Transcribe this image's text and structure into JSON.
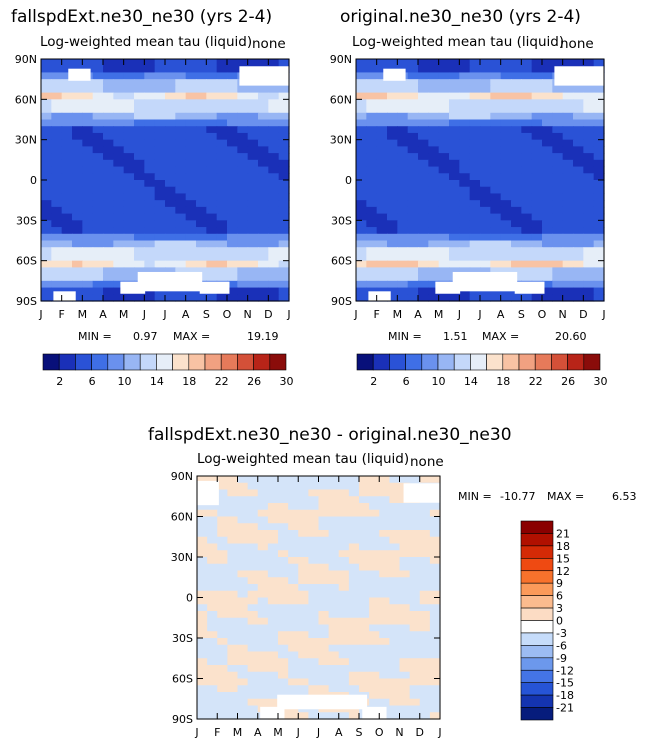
{
  "figure": {
    "title_left": "fallspdExt.ne30_ne30 (yrs 2-4)",
    "title_right": "original.ne30_ne30 (yrs 2-4)",
    "title_diff": "fallspdExt.ne30_ne30 - original.ne30_ne30"
  },
  "chart_data": [
    {
      "type": "heatmap",
      "title": "Log-weighted mean tau (liquid)",
      "corner_label": "none",
      "xlabel": "",
      "ylabel": "",
      "x_ticks": [
        "J",
        "F",
        "M",
        "A",
        "M",
        "J",
        "J",
        "A",
        "S",
        "O",
        "N",
        "D",
        "J"
      ],
      "y_ticks": [
        "90N",
        "60N",
        "30N",
        "0",
        "30S",
        "60S",
        "90S"
      ],
      "min_label": "MIN =",
      "min": "0.97",
      "max_label": "MAX =",
      "max": "19.19",
      "colorbar_labels": [
        "2",
        "6",
        "10",
        "14",
        "18",
        "22",
        "26",
        "30"
      ],
      "colorbar_colors": [
        "#08107a",
        "#1a30b8",
        "#2a52d6",
        "#3f6fe6",
        "#6a91ee",
        "#98b6f4",
        "#c4d8fa",
        "#e6eef8",
        "#fbe2cc",
        "#f8c3a4",
        "#f1a181",
        "#e67a5a",
        "#d45038",
        "#b82418",
        "#8a0c0a"
      ],
      "description_zones": "tau by month and latitude"
    },
    {
      "type": "heatmap",
      "title": "Log-weighted mean tau (liquid)",
      "corner_label": "none",
      "x_ticks": [
        "J",
        "F",
        "M",
        "A",
        "M",
        "J",
        "J",
        "A",
        "S",
        "O",
        "N",
        "D",
        "J"
      ],
      "y_ticks": [
        "90N",
        "60N",
        "30N",
        "0",
        "30S",
        "60S",
        "90S"
      ],
      "min_label": "MIN =",
      "min": "1.51",
      "max_label": "MAX =",
      "max": "20.60",
      "colorbar_labels": [
        "2",
        "6",
        "10",
        "14",
        "18",
        "22",
        "26",
        "30"
      ]
    },
    {
      "type": "heatmap",
      "title": "Log-weighted mean tau (liquid)",
      "corner_label": "none",
      "x_ticks": [
        "J",
        "F",
        "M",
        "A",
        "M",
        "J",
        "J",
        "A",
        "S",
        "O",
        "N",
        "D",
        "J"
      ],
      "y_ticks": [
        "90N",
        "60N",
        "30N",
        "0",
        "30S",
        "60S",
        "90S"
      ],
      "min_label": "MIN =",
      "min": "-10.77",
      "max_label": "MAX =",
      "max": "6.53",
      "colorbar_labels": [
        "21",
        "18",
        "15",
        "12",
        "9",
        "6",
        "3",
        "0",
        "-3",
        "-6",
        "-9",
        "-12",
        "-15",
        "-18",
        "-21"
      ],
      "colorbar_colors": [
        "#8a0000",
        "#b11000",
        "#d42a06",
        "#ef4a12",
        "#f8722c",
        "#fb9a5a",
        "#fbbb8e",
        "#fcdcc4",
        "#ffffff",
        "#c6dcfa",
        "#9cbcf3",
        "#6c98ec",
        "#4474e6",
        "#2654d6",
        "#1434b0",
        "#061c7c"
      ]
    }
  ]
}
